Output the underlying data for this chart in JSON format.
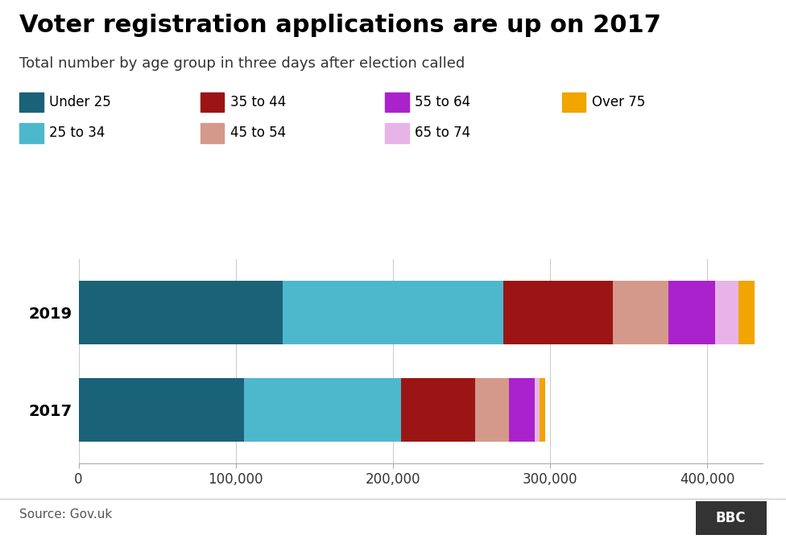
{
  "title": "Voter registration applications are up on 2017",
  "subtitle": "Total number by age group in three days after election called",
  "years": [
    "2019",
    "2017"
  ],
  "age_groups": [
    "Under 25",
    "25 to 34",
    "35 to 44",
    "45 to 54",
    "55 to 64",
    "65 to 74",
    "Over 75"
  ],
  "colors": [
    "#1a6278",
    "#4db8cc",
    "#9b1515",
    "#d4998a",
    "#aa22cc",
    "#e8b4e8",
    "#f0a500"
  ],
  "values_2019": [
    130000,
    140000,
    70000,
    35000,
    30000,
    15000,
    10000
  ],
  "values_2017": [
    105000,
    100000,
    47000,
    22000,
    16000,
    3000,
    4000
  ],
  "source": "Source: Gov.uk",
  "xlim": [
    0,
    435000
  ],
  "xticks": [
    0,
    100000,
    200000,
    300000,
    400000
  ],
  "xticklabels": [
    "0",
    "100,000",
    "200,000",
    "300,000",
    "400,000"
  ],
  "background_color": "#ffffff",
  "title_fontsize": 22,
  "subtitle_fontsize": 13,
  "legend_fontsize": 12,
  "tick_fontsize": 12,
  "source_fontsize": 11,
  "legend_row1_indices": [
    0,
    2,
    4,
    6
  ],
  "legend_row2_indices": [
    1,
    3,
    5
  ]
}
